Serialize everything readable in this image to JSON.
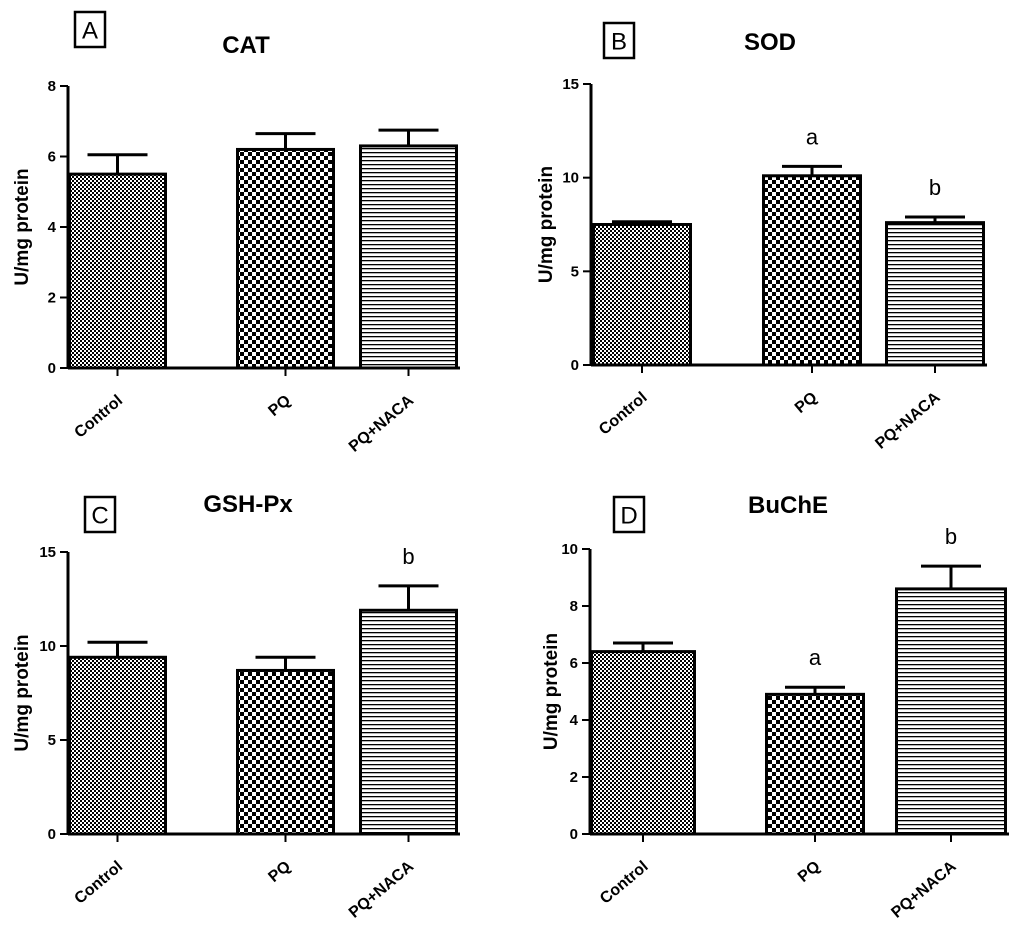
{
  "chart_data": [
    {
      "type": "bar",
      "panel": "A",
      "title": "CAT",
      "ylabel": "U/mg protein",
      "categories": [
        "Control",
        "PQ",
        "PQ+NACA"
      ],
      "values": [
        5.5,
        6.2,
        6.3
      ],
      "errors": [
        0.55,
        0.45,
        0.45
      ],
      "significance": [
        "",
        "",
        ""
      ],
      "ylim": [
        0,
        8
      ],
      "yticks": [
        0,
        2,
        4,
        6,
        8
      ],
      "patterns": [
        "checker",
        "checker-bold",
        "hlines"
      ]
    },
    {
      "type": "bar",
      "panel": "B",
      "title": "SOD",
      "ylabel": "U/mg protein",
      "categories": [
        "Control",
        "PQ",
        "PQ+NACA"
      ],
      "values": [
        7.5,
        10.1,
        7.6
      ],
      "errors": [
        0.15,
        0.5,
        0.3
      ],
      "significance": [
        "",
        "a",
        "b"
      ],
      "ylim": [
        0,
        15
      ],
      "yticks": [
        0,
        5,
        10,
        15
      ],
      "patterns": [
        "checker",
        "checker-bold",
        "hlines"
      ]
    },
    {
      "type": "bar",
      "panel": "C",
      "title": "GSH-Px",
      "ylabel": "U/mg protein",
      "categories": [
        "Control",
        "PQ",
        "PQ+NACA"
      ],
      "values": [
        9.4,
        8.7,
        11.9
      ],
      "errors": [
        0.8,
        0.7,
        1.3
      ],
      "significance": [
        "",
        "",
        "b"
      ],
      "ylim": [
        0,
        15
      ],
      "yticks": [
        0,
        5,
        10,
        15
      ],
      "patterns": [
        "checker",
        "checker-bold",
        "hlines"
      ]
    },
    {
      "type": "bar",
      "panel": "D",
      "title": "BuChE",
      "ylabel": "U/mg protein",
      "categories": [
        "Control",
        "PQ",
        "PQ+NACA"
      ],
      "values": [
        6.4,
        4.9,
        8.6
      ],
      "errors": [
        0.3,
        0.25,
        0.8
      ],
      "significance": [
        "",
        "a",
        "b"
      ],
      "ylim": [
        0,
        10
      ],
      "yticks": [
        0,
        2,
        4,
        6,
        8,
        10
      ],
      "patterns": [
        "checker",
        "checker-bold",
        "hlines"
      ]
    }
  ]
}
